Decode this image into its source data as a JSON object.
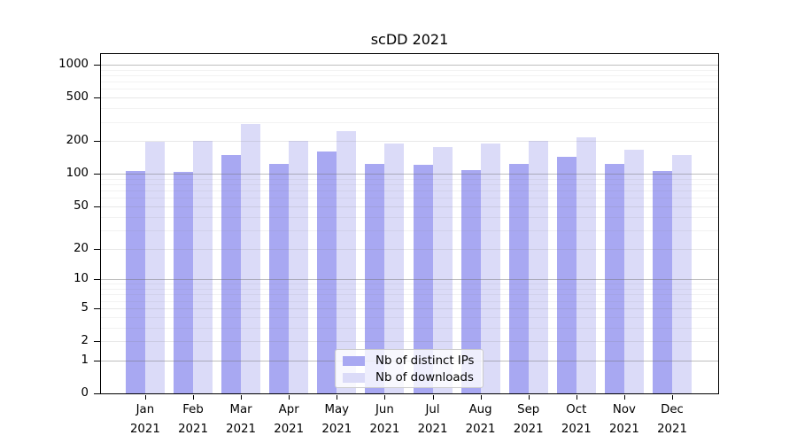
{
  "title": "scDD 2021",
  "chart_data": {
    "type": "bar",
    "title": "scDD 2021",
    "categories": [
      "Jan",
      "Feb",
      "Mar",
      "Apr",
      "May",
      "Jun",
      "Jul",
      "Aug",
      "Sep",
      "Oct",
      "Nov",
      "Dec"
    ],
    "year_label": "2021",
    "series": [
      {
        "name": "Nb of distinct IPs",
        "color": "#a8a8f2",
        "values": [
          107,
          105,
          148,
          123,
          159,
          123,
          120,
          109,
          123,
          144,
          123,
          107
        ]
      },
      {
        "name": "Nb of downloads",
        "color": "#dbdbf8",
        "values": [
          196,
          202,
          285,
          202,
          248,
          190,
          177,
          189,
          200,
          216,
          166,
          148
        ]
      }
    ],
    "yscale": "log1p",
    "ylim": [
      0,
      1250
    ],
    "yticks": [
      0,
      1,
      2,
      5,
      10,
      20,
      50,
      100,
      200,
      500,
      1000
    ],
    "minor_gridlines": [
      3,
      4,
      6,
      7,
      8,
      9,
      30,
      40,
      60,
      70,
      80,
      90,
      300,
      400,
      600,
      700,
      800,
      900
    ],
    "grid": true,
    "legend_position": "lower center",
    "xlabel": "",
    "ylabel": ""
  }
}
